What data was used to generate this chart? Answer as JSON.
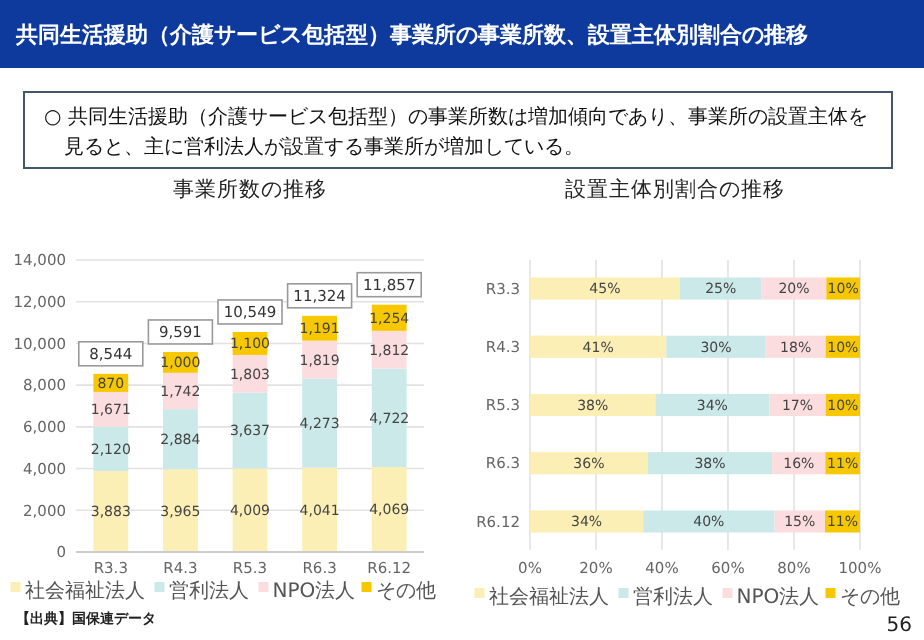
{
  "chart_data": [
    {
      "type": "bar",
      "stacked": true,
      "title": "事業所数の推移",
      "categories": [
        "R3.3",
        "R4.3",
        "R5.3",
        "R6.3",
        "R6.12"
      ],
      "series": [
        {
          "name": "社会福祉法人",
          "color": "#fbefb5",
          "values": [
            3883,
            3965,
            4009,
            4041,
            4069
          ]
        },
        {
          "name": "営利法人",
          "color": "#cbe9e8",
          "values": [
            2120,
            2884,
            3637,
            4273,
            4722
          ]
        },
        {
          "name": "NPO法人",
          "color": "#fbdde0",
          "values": [
            1671,
            1742,
            1803,
            1819,
            1812
          ]
        },
        {
          "name": "その他",
          "color": "#f7c800",
          "values": [
            870,
            1000,
            1100,
            1191,
            1254
          ]
        }
      ],
      "totals": [
        "8,544",
        "9,591",
        "10,549",
        "11,324",
        "11,857"
      ],
      "ylim": [
        0,
        14000
      ],
      "yticks": [
        {
          "value": 0,
          "label": "0"
        },
        {
          "value": 2000,
          "label": "2,000"
        },
        {
          "value": 4000,
          "label": "4,000"
        },
        {
          "value": 6000,
          "label": "6,000"
        },
        {
          "value": 8000,
          "label": "8,000"
        },
        {
          "value": 10000,
          "label": "10,000"
        },
        {
          "value": 12000,
          "label": "12,000"
        },
        {
          "value": 14000,
          "label": "14,000"
        }
      ],
      "value_labels": [
        [
          "3,883",
          "3,965",
          "4,009",
          "4,041",
          "4,069"
        ],
        [
          "2,120",
          "2,884",
          "3,637",
          "4,273",
          "4,722"
        ],
        [
          "1,671",
          "1,742",
          "1,803",
          "1,819",
          "1,812"
        ],
        [
          "870",
          "1,000",
          "1,100",
          "1,191",
          "1,254"
        ]
      ],
      "grid": "y",
      "legend": "bottom",
      "annotations": [
        "共同生活援助（介護サービス包括型）事業所の事業所数、設置主体別割合の推移",
        "○ 共同生活援助（介護サービス包括型）の事業所数は増加傾向であり、事業所の設置主体を見ると、主に営利法人が設置する事業所が増加している。",
        "【出典】国保連データ"
      ]
    },
    {
      "type": "bar",
      "stacked": true,
      "orientation": "horizontal",
      "title": "設置主体別割合の推移",
      "categories": [
        "R3.3",
        "R4.3",
        "R5.3",
        "R6.3",
        "R6.12"
      ],
      "series": [
        {
          "name": "社会福祉法人",
          "color": "#fbefb5",
          "values": [
            45.4,
            41.3,
            38.0,
            35.7,
            34.3
          ]
        },
        {
          "name": "営利法人",
          "color": "#cbe9e8",
          "values": [
            24.8,
            30.1,
            34.5,
            37.7,
            39.8
          ]
        },
        {
          "name": "NPO法人",
          "color": "#fbdde0",
          "values": [
            19.6,
            18.2,
            17.1,
            16.1,
            15.3
          ]
        },
        {
          "name": "その他",
          "color": "#f7c800",
          "values": [
            10.2,
            10.4,
            10.4,
            10.5,
            10.6
          ]
        }
      ],
      "xlim": [
        0,
        100
      ],
      "xticks": [
        {
          "value": 0,
          "label": "0%"
        },
        {
          "value": 20,
          "label": "20%"
        },
        {
          "value": 40,
          "label": "40%"
        },
        {
          "value": 60,
          "label": "60%"
        },
        {
          "value": 80,
          "label": "80%"
        },
        {
          "value": 100,
          "label": "100%"
        }
      ],
      "value_labels": [
        [
          "45%",
          "41%",
          "38%",
          "36%",
          "34%"
        ],
        [
          "25%",
          "30%",
          "34%",
          "38%",
          "40%"
        ],
        [
          "20%",
          "18%",
          "17%",
          "16%",
          "15%"
        ],
        [
          "10%",
          "10%",
          "10%",
          "11%",
          "11%"
        ]
      ],
      "grid": "x",
      "legend": "bottom",
      "annotations": [
        "56"
      ]
    }
  ]
}
